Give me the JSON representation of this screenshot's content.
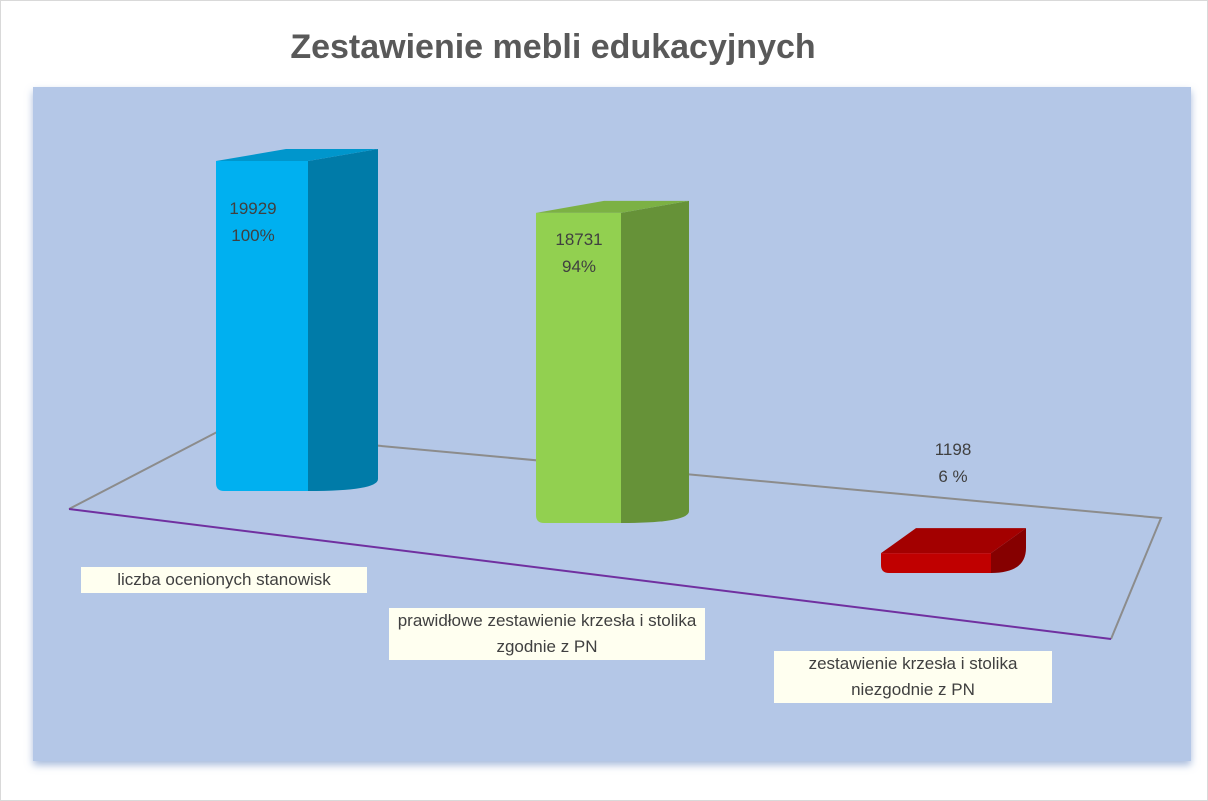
{
  "chart_data": {
    "type": "bar3d",
    "title": "Zestawienie mebli edukacyjnych",
    "categories": [
      "liczba ocenionych stanowisk",
      "prawidłowe zestawienie krzesła i stolika zgodnie z PN",
      "zestawienie krzesła i stolika niezgodnie z PN"
    ],
    "values": [
      19929,
      18731,
      1198
    ],
    "percent_labels": [
      "100%",
      "94%",
      "6 %"
    ],
    "colors": [
      "#00b0f0",
      "#92d050",
      "#c00000"
    ]
  }
}
